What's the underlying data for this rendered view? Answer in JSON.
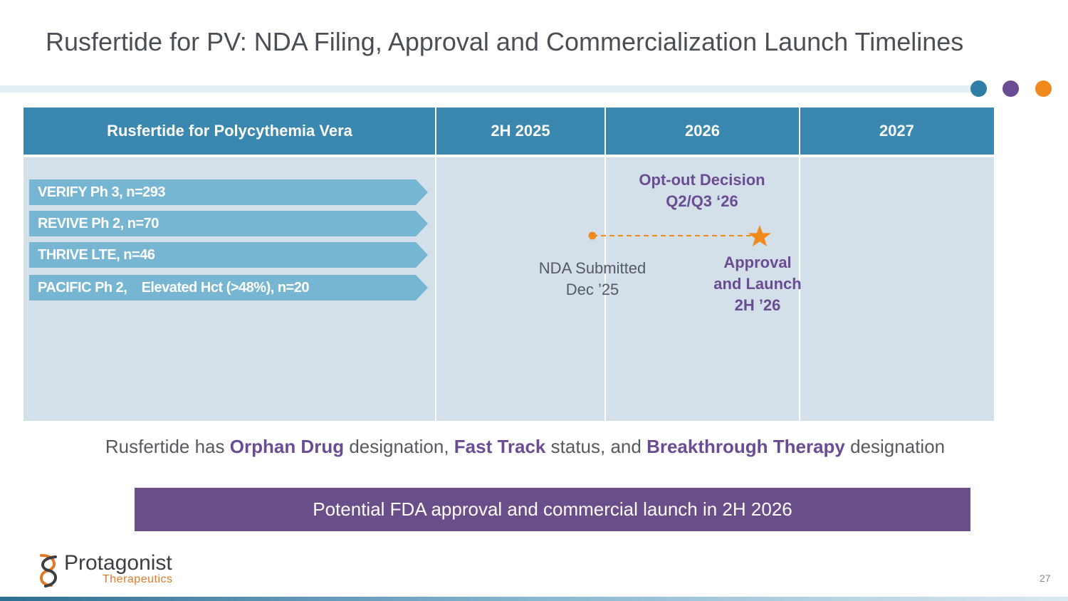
{
  "title": "Rusfertide for PV: NDA Filing, Approval and Commercialization Launch Timelines",
  "decor_dots": [
    "#2f7ea6",
    "#6a4c93",
    "#f08a1c"
  ],
  "table": {
    "headers": [
      "Rusfertide for Polycythemia Vera",
      "2H 2025",
      "2026",
      "2027"
    ],
    "studies": [
      "VERIFY Ph 3, n=293",
      "REVIVE Ph 2, n=70",
      "THRIVE LTE, n=46",
      "PACIFIC Ph 2,    Elevated Hct (>48%), n=20"
    ]
  },
  "timeline": {
    "opt_out_line1": "Opt-out Decision",
    "opt_out_line2": "Q2/Q3 ‘26",
    "nda_line1": "NDA Submitted",
    "nda_line2": "Dec ’25",
    "approval_line1": "Approval",
    "approval_line2": "and Launch",
    "approval_line3": "2H ’26",
    "accent_color": "#f08a1c"
  },
  "designation": {
    "part1": "Rusfertide has ",
    "bold1": "Orphan Drug",
    "part2": " designation, ",
    "bold2": "Fast Track",
    "part3": " status, and ",
    "bold3": "Breakthrough Therapy",
    "part4": " designation"
  },
  "banner": "Potential FDA approval and commercial launch in 2H 2026",
  "logo": {
    "name": "Protagonist",
    "sub": "Therapeutics"
  },
  "page_number": "27"
}
